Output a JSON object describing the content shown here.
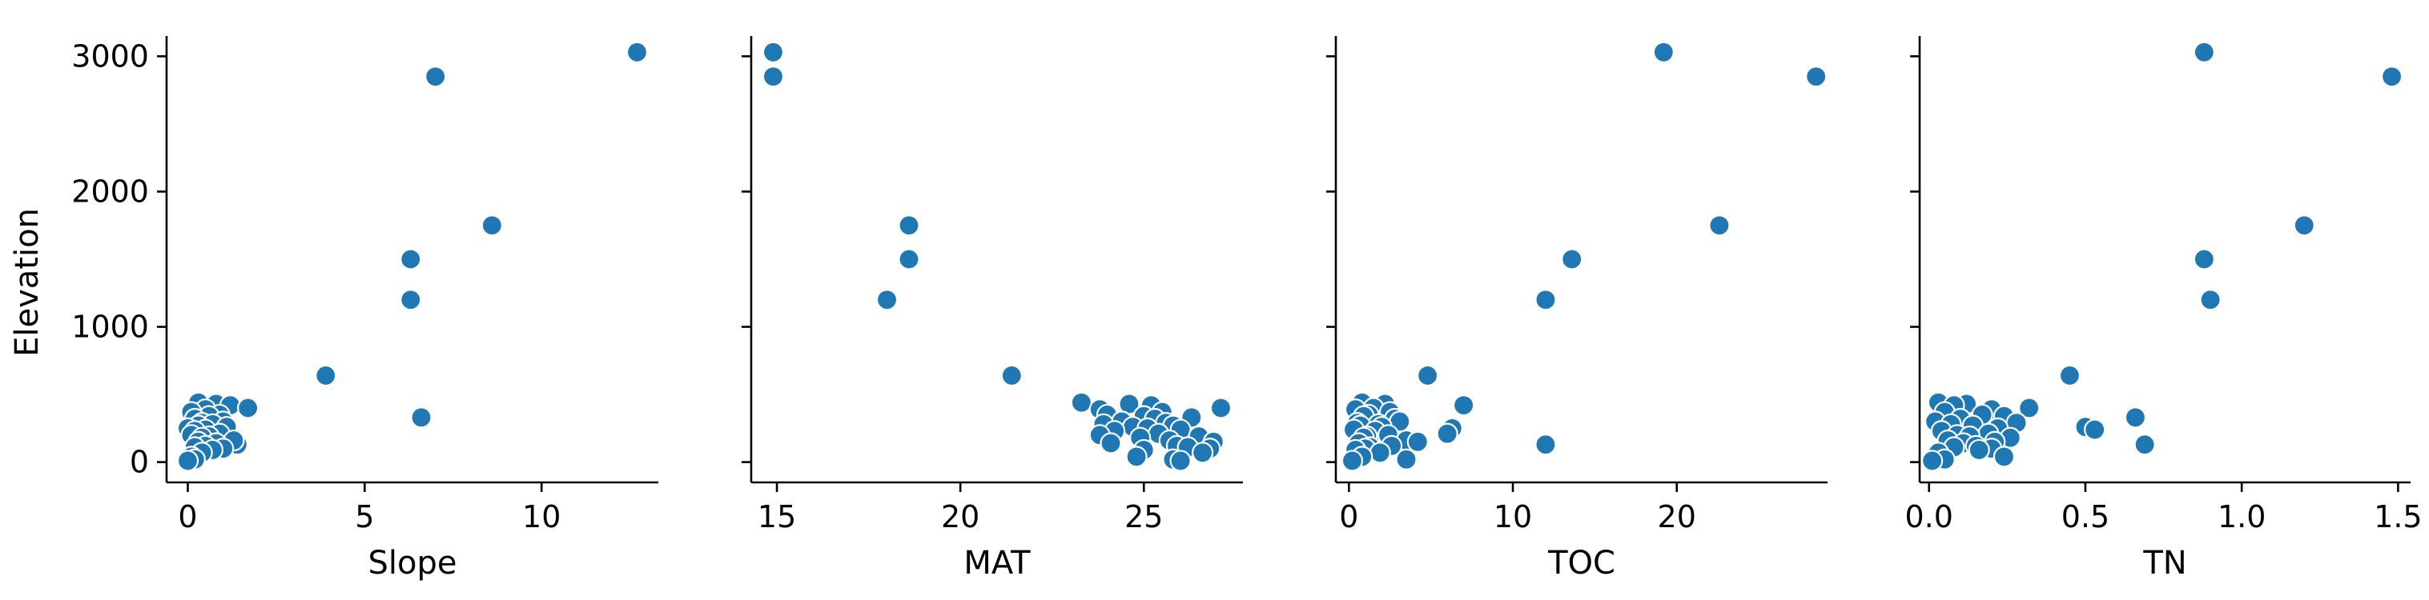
{
  "chart_data": {
    "type": "scatter",
    "ylabel": "Elevation",
    "ylim": [
      -150,
      3150
    ],
    "yticks": [
      0,
      1000,
      2000,
      3000
    ],
    "y": [
      3030,
      2850,
      1750,
      1500,
      1200,
      640,
      330,
      130,
      440,
      430,
      420,
      400,
      390,
      370,
      350,
      340,
      320,
      300,
      290,
      280,
      270,
      260,
      250,
      240,
      230,
      210,
      200,
      190,
      180,
      160,
      150,
      140,
      120,
      110,
      100,
      90,
      70,
      40,
      20,
      10
    ],
    "panels": [
      {
        "xlabel": "Slope",
        "xlim": [
          -0.6,
          13.3
        ],
        "xticks": [
          0,
          5,
          10
        ],
        "x": [
          12.7,
          7.0,
          8.6,
          6.3,
          6.3,
          3.9,
          6.6,
          1.4,
          0.3,
          0.8,
          1.2,
          1.7,
          0.5,
          0.1,
          0.9,
          0.6,
          0.2,
          1.0,
          0.4,
          0.7,
          0.3,
          1.1,
          0.0,
          0.5,
          0.2,
          0.9,
          0.1,
          0.6,
          0.4,
          1.3,
          0.3,
          0.8,
          0.5,
          0.2,
          1.0,
          0.7,
          0.4,
          0.1,
          0.2,
          0.0
        ]
      },
      {
        "xlabel": "MAT",
        "xlim": [
          14.3,
          27.7
        ],
        "xticks": [
          15,
          20,
          25
        ],
        "x": [
          14.9,
          14.9,
          18.6,
          18.6,
          18.0,
          21.4,
          26.3,
          26.3,
          23.3,
          24.6,
          25.2,
          27.1,
          23.8,
          25.5,
          24.0,
          25.0,
          25.3,
          24.4,
          25.6,
          23.9,
          25.8,
          24.7,
          25.1,
          26.0,
          24.2,
          25.4,
          23.8,
          26.5,
          24.9,
          25.7,
          26.9,
          24.1,
          25.9,
          26.2,
          26.8,
          25.0,
          26.6,
          24.8,
          25.8,
          26.0
        ]
      },
      {
        "xlabel": "TOC",
        "xlim": [
          -0.8,
          29.2
        ],
        "xticks": [
          0,
          10,
          20
        ],
        "x": [
          19.2,
          28.5,
          22.6,
          13.6,
          12.0,
          4.8,
          0.6,
          12.0,
          0.8,
          2.2,
          7.0,
          1.5,
          0.4,
          2.5,
          1.2,
          0.9,
          2.8,
          3.1,
          0.5,
          1.8,
          0.7,
          2.0,
          6.3,
          0.3,
          1.6,
          6.0,
          2.4,
          1.1,
          0.9,
          3.5,
          4.2,
          0.6,
          2.6,
          1.3,
          1.0,
          0.4,
          1.9,
          0.8,
          3.5,
          0.2
        ]
      },
      {
        "xlabel": "TN",
        "xlim": [
          -0.03,
          1.54
        ],
        "xticks": [
          0.0,
          0.5,
          1.0,
          1.5
        ],
        "x": [
          0.88,
          1.48,
          1.2,
          0.88,
          0.9,
          0.45,
          0.66,
          0.69,
          0.03,
          0.12,
          0.08,
          0.32,
          0.2,
          0.05,
          0.17,
          0.24,
          0.1,
          0.02,
          0.28,
          0.07,
          0.14,
          0.5,
          0.22,
          0.53,
          0.04,
          0.19,
          0.09,
          0.13,
          0.26,
          0.06,
          0.21,
          0.11,
          0.15,
          0.08,
          0.2,
          0.16,
          0.03,
          0.24,
          0.05,
          0.01
        ]
      }
    ]
  }
}
